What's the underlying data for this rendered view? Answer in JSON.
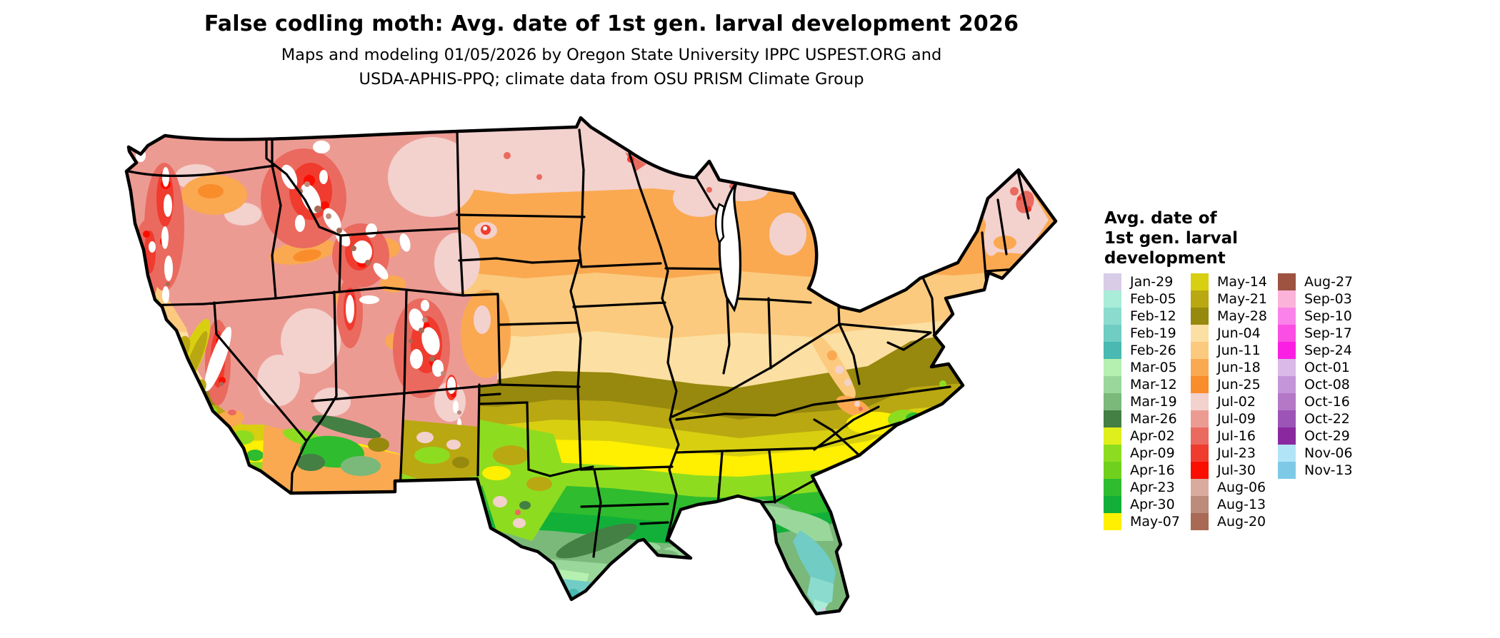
{
  "header": {
    "title": "False codling moth: Avg. date of 1st gen. larval development 2026",
    "subtitle_line1": "Maps and modeling 01/05/2026 by Oregon State University IPPC USPEST.ORG and",
    "subtitle_line2": "USDA-APHIS-PPQ; climate data from OSU PRISM Climate Group"
  },
  "map": {
    "kind": "raster choropleth of contiguous United States with state borders",
    "no_data_color": "#ffffff"
  },
  "legend": {
    "title_lines": [
      "Avg. date of",
      "1st gen. larval",
      "development"
    ],
    "columns": [
      {
        "entries": [
          {
            "label": "Jan-29",
            "color": "#d8cde7"
          },
          {
            "label": "Feb-05",
            "color": "#a9edd9"
          },
          {
            "label": "Feb-12",
            "color": "#8bdcce"
          },
          {
            "label": "Feb-19",
            "color": "#6fcdc4"
          },
          {
            "label": "Feb-26",
            "color": "#49b9b1"
          },
          {
            "label": "Mar-05",
            "color": "#b5f0b0"
          },
          {
            "label": "Mar-12",
            "color": "#9ad79a"
          },
          {
            "label": "Mar-19",
            "color": "#7ab97a"
          },
          {
            "label": "Mar-26",
            "color": "#447f44"
          },
          {
            "label": "Apr-02",
            "color": "#dfef1c"
          },
          {
            "label": "Apr-09",
            "color": "#8edc20"
          },
          {
            "label": "Apr-16",
            "color": "#70d01e"
          },
          {
            "label": "Apr-23",
            "color": "#2fbc2f"
          },
          {
            "label": "Apr-30",
            "color": "#12b038"
          },
          {
            "label": "May-07",
            "color": "#ffef00"
          }
        ]
      },
      {
        "entries": [
          {
            "label": "May-14",
            "color": "#d8cf10"
          },
          {
            "label": "May-21",
            "color": "#b9a811"
          },
          {
            "label": "May-28",
            "color": "#97880e"
          },
          {
            "label": "Jun-04",
            "color": "#fcdfa2"
          },
          {
            "label": "Jun-11",
            "color": "#fbca7e"
          },
          {
            "label": "Jun-18",
            "color": "#faa951"
          },
          {
            "label": "Jun-25",
            "color": "#f98c2b"
          },
          {
            "label": "Jul-02",
            "color": "#f3d1cd"
          },
          {
            "label": "Jul-09",
            "color": "#ec9b93"
          },
          {
            "label": "Jul-16",
            "color": "#ea6a5f"
          },
          {
            "label": "Jul-23",
            "color": "#f03b2f"
          },
          {
            "label": "Jul-30",
            "color": "#fb0d00"
          },
          {
            "label": "Aug-06",
            "color": "#d9ab9e"
          },
          {
            "label": "Aug-13",
            "color": "#bd8b7b"
          },
          {
            "label": "Aug-20",
            "color": "#a96a55"
          }
        ]
      },
      {
        "entries": [
          {
            "label": "Aug-27",
            "color": "#9e5340"
          },
          {
            "label": "Sep-03",
            "color": "#fcb3d9"
          },
          {
            "label": "Sep-10",
            "color": "#f983e9"
          },
          {
            "label": "Sep-17",
            "color": "#fa4fe2"
          },
          {
            "label": "Sep-24",
            "color": "#fb1fe3"
          },
          {
            "label": "Oct-01",
            "color": "#dab8e8"
          },
          {
            "label": "Oct-08",
            "color": "#c495d8"
          },
          {
            "label": "Oct-16",
            "color": "#b478c6"
          },
          {
            "label": "Oct-22",
            "color": "#9c54b6"
          },
          {
            "label": "Oct-29",
            "color": "#8a28a0"
          },
          {
            "label": "Nov-06",
            "color": "#b2e4f8"
          },
          {
            "label": "Nov-13",
            "color": "#7ecae6"
          }
        ]
      }
    ]
  }
}
